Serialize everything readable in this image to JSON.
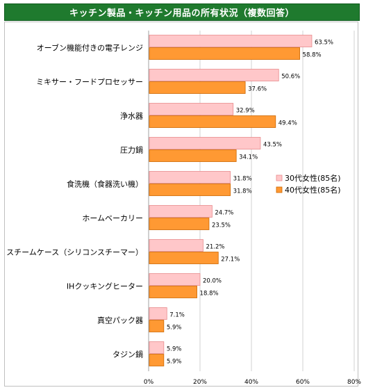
{
  "chart_data": {
    "type": "bar",
    "orientation": "horizontal",
    "title": "キッチン製品・キッチン用品の所有状況（複数回答）",
    "categories": [
      "オーブン機能付きの電子レンジ",
      "ミキサー・フードプロセッサー",
      "浄水器",
      "圧力鍋",
      "食洗機（食器洗い機）",
      "ホームベーカリー",
      "スチームケース（シリコンスチーマー）",
      "IHクッキングヒーター",
      "真空パック器",
      "タジン鍋"
    ],
    "series": [
      {
        "name": "30代女性(85名)",
        "color": "#ffc7c9",
        "stroke": "#e88a8c",
        "values": [
          63.5,
          50.6,
          32.9,
          43.5,
          31.8,
          24.7,
          21.2,
          20.0,
          7.1,
          5.9
        ],
        "labels": [
          "63.5%",
          "50.6%",
          "32.9%",
          "43.5%",
          "31.8%",
          "24.7%",
          "21.2%",
          "20.0%",
          "7.1%",
          "5.9%"
        ]
      },
      {
        "name": "40代女性(85名)",
        "color": "#ff9933",
        "stroke": "#cc6600",
        "values": [
          58.8,
          37.6,
          49.4,
          34.1,
          31.8,
          23.5,
          27.1,
          18.8,
          5.9,
          5.9
        ],
        "labels": [
          "58.8%",
          "37.6%",
          "49.4%",
          "34.1%",
          "31.8%",
          "23.5%",
          "27.1%",
          "18.8%",
          "5.9%",
          "5.9%"
        ]
      }
    ],
    "xlim": [
      0,
      80
    ],
    "xticks": [
      0,
      20,
      40,
      60,
      80
    ],
    "xtick_labels": [
      "0%",
      "20%",
      "40%",
      "60%",
      "80%"
    ],
    "grid": true,
    "legend_position": "right-middle"
  }
}
